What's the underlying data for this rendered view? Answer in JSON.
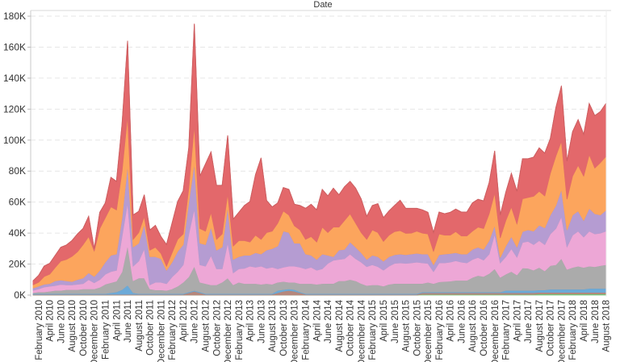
{
  "chart_data": {
    "type": "area",
    "stacked": true,
    "title": "Date",
    "xlabel": "",
    "ylabel": "",
    "ylim": [
      0,
      185
    ],
    "y_ticks": [
      0,
      20,
      40,
      60,
      80,
      100,
      120,
      140,
      160,
      180
    ],
    "y_tick_labels": [
      "0K",
      "20K",
      "40K",
      "60K",
      "80K",
      "100K",
      "120K",
      "140K",
      "160K",
      "180K"
    ],
    "grid": "horizontal dashed",
    "legend": "none",
    "x": [
      "2010-01",
      "2010-02",
      "2010-03",
      "2010-04",
      "2010-05",
      "2010-06",
      "2010-07",
      "2010-08",
      "2010-09",
      "2010-10",
      "2010-11",
      "2010-12",
      "2011-01",
      "2011-02",
      "2011-03",
      "2011-04",
      "2011-05",
      "2011-06",
      "2011-07",
      "2011-08",
      "2011-09",
      "2011-10",
      "2011-11",
      "2011-12",
      "2012-01",
      "2012-02",
      "2012-03",
      "2012-04",
      "2012-05",
      "2012-06",
      "2012-07",
      "2012-08",
      "2012-09",
      "2012-10",
      "2012-11",
      "2012-12",
      "2013-01",
      "2013-02",
      "2013-03",
      "2013-04",
      "2013-05",
      "2013-06",
      "2013-07",
      "2013-08",
      "2013-09",
      "2013-10",
      "2013-11",
      "2013-12",
      "2014-01",
      "2014-02",
      "2014-03",
      "2014-04",
      "2014-05",
      "2014-06",
      "2014-07",
      "2014-08",
      "2014-09",
      "2014-10",
      "2014-11",
      "2014-12",
      "2015-01",
      "2015-02",
      "2015-03",
      "2015-04",
      "2015-05",
      "2015-06",
      "2015-07",
      "2015-08",
      "2015-09",
      "2015-10",
      "2015-11",
      "2015-12",
      "2016-01",
      "2016-02",
      "2016-03",
      "2016-04",
      "2016-05",
      "2016-06",
      "2016-07",
      "2016-08",
      "2016-09",
      "2016-10",
      "2016-11",
      "2016-12",
      "2017-01",
      "2017-02",
      "2017-03",
      "2017-04",
      "2017-05",
      "2017-06",
      "2017-07",
      "2017-08",
      "2017-09",
      "2017-10",
      "2017-11",
      "2017-12",
      "2018-01",
      "2018-02",
      "2018-03",
      "2018-04",
      "2018-05",
      "2018-06",
      "2018-07",
      "2018-08"
    ],
    "x_tick_labels": [
      "February 2010",
      "April 2010",
      "June 2010",
      "August 2010",
      "October 2010",
      "December 2010",
      "February 2011",
      "April 2011",
      "June 2011",
      "August 2011",
      "October 2011",
      "December 2011",
      "February 2012",
      "April 2012",
      "June 2012",
      "August 2012",
      "October 2012",
      "December 2012",
      "February 2013",
      "April 2013",
      "June 2013",
      "August 2013",
      "October 2013",
      "December 2013",
      "February 2014",
      "April 2014",
      "June 2014",
      "August 2014",
      "October 2014",
      "December 2014",
      "February 2015",
      "April 2015",
      "June 2015",
      "August 2015",
      "October 2015",
      "December 2015",
      "February 2016",
      "April 2016",
      "June 2016",
      "August 2016",
      "October 2016",
      "December 2016",
      "February 2017",
      "April 2017",
      "June 2017",
      "August 2017",
      "October 2017",
      "December 2017",
      "February 2018",
      "April 2018",
      "June 2018",
      "August 2018"
    ],
    "series": [
      {
        "color": "#79c278",
        "values": [
          0,
          0,
          0,
          0,
          0,
          0,
          0,
          0,
          0,
          0,
          0,
          0,
          0,
          0,
          0,
          0,
          0,
          0,
          0,
          0,
          0,
          0,
          0,
          0,
          0,
          0,
          0,
          0,
          0,
          0,
          0,
          0,
          0,
          0,
          0,
          0,
          0,
          0,
          0,
          0,
          0,
          0,
          0,
          0,
          0,
          0,
          0,
          0,
          0,
          0,
          0,
          0,
          0,
          0,
          0,
          0,
          0,
          0,
          0,
          0,
          0,
          0,
          0,
          0,
          0,
          0,
          0,
          0,
          0,
          0,
          0.5,
          0.5,
          0.5,
          0.5,
          0.5,
          0.5,
          0.5,
          0.5,
          0.5,
          0.5,
          0.5,
          0.5,
          0.5,
          0.5,
          0.5,
          0.5,
          0.5,
          0.5,
          0.5,
          0.5,
          0.5,
          0.8,
          0.8,
          0.8,
          0.8,
          0.8,
          0.8,
          0.8,
          0.8,
          0.8,
          0.8,
          0.8,
          0.8,
          0.8
        ]
      },
      {
        "color": "#b5877c",
        "values": [
          0.5,
          0.5,
          0.5,
          0.5,
          0.5,
          0.5,
          0.5,
          0.5,
          0.5,
          0.5,
          0.5,
          0.5,
          0.5,
          0.5,
          0.5,
          0.5,
          0.5,
          0.5,
          0.5,
          0.5,
          0.5,
          0.5,
          0.5,
          0.5,
          0.5,
          0.5,
          0.5,
          0.5,
          1.5,
          2.5,
          1.5,
          0.5,
          0.5,
          0.5,
          0.5,
          0.5,
          0.5,
          0.5,
          0.5,
          0.5,
          0.5,
          0.5,
          0.5,
          0.5,
          1.5,
          2.5,
          3,
          2.5,
          1.5,
          0.5,
          0.5,
          0.5,
          0.5,
          0.5,
          0.5,
          0.5,
          0.5,
          0.5,
          0.5,
          0.5,
          0.5,
          0.5,
          0.5,
          0.5,
          0.5,
          0.5,
          0.5,
          0.5,
          0.5,
          0.5,
          1,
          1,
          1,
          1,
          1,
          1,
          1,
          1,
          1,
          1,
          1,
          1,
          1,
          1,
          1,
          1,
          1,
          1,
          1,
          1,
          1,
          1,
          1,
          1,
          1,
          1,
          1,
          1,
          1,
          1,
          1,
          1,
          1,
          1
        ]
      },
      {
        "color": "#6caad8",
        "values": [
          0.5,
          0.5,
          0.5,
          0.5,
          0.5,
          0.5,
          0.5,
          0.5,
          0.5,
          0.5,
          0.5,
          0.5,
          0.5,
          0.5,
          1,
          1.5,
          3,
          6,
          1,
          0.5,
          0.5,
          0.5,
          0.5,
          0.5,
          0.5,
          0.5,
          0.5,
          0.5,
          0.5,
          0.5,
          0.5,
          0.5,
          0.5,
          0.5,
          0.5,
          0.5,
          0.5,
          0.5,
          0.5,
          0.5,
          0.5,
          0.5,
          0.5,
          0.5,
          1.5,
          1,
          1,
          1,
          0.5,
          0.5,
          0.5,
          0.5,
          0.5,
          0.5,
          0.5,
          0.5,
          0.5,
          0.5,
          0.5,
          0.5,
          0.5,
          0.5,
          0.5,
          0.5,
          0.5,
          0.5,
          0.5,
          0.5,
          0.5,
          0.5,
          0.5,
          0.5,
          0.5,
          0.5,
          0.5,
          0.5,
          0.5,
          0.5,
          0.5,
          0.5,
          0.5,
          0.5,
          0.5,
          0.5,
          0.5,
          1.5,
          1.5,
          1.5,
          1.5,
          1.5,
          1.5,
          1.5,
          1.5,
          2,
          2,
          2,
          2,
          2,
          2,
          2,
          2.5,
          2.5,
          2.5,
          2.5
        ]
      },
      {
        "color": "#ababab",
        "values": [
          0.5,
          1,
          1,
          1.5,
          2,
          2,
          2.5,
          2.5,
          2.5,
          3,
          3,
          3,
          4,
          6,
          6.5,
          7,
          11.5,
          25.5,
          7.7,
          10,
          10,
          3,
          2.3,
          2.3,
          2,
          3,
          4.7,
          7.3,
          9.8,
          15.7,
          6.3,
          6.4,
          5.6,
          5.6,
          7.3,
          10,
          5.6,
          7.3,
          6.4,
          6.4,
          6.4,
          6,
          6.4,
          6,
          5.3,
          5.3,
          4.3,
          4.8,
          5.4,
          6.4,
          6.4,
          6,
          6.4,
          6.5,
          6.5,
          8.2,
          8.2,
          9,
          8.2,
          6.5,
          5.2,
          5.6,
          5.6,
          4.8,
          6,
          6.5,
          6.5,
          6.5,
          6.5,
          6.5,
          5.5,
          6.3,
          5.4,
          6.5,
          6.8,
          7,
          7.5,
          7.5,
          7.5,
          9.4,
          10.6,
          10,
          11.9,
          15,
          9.4,
          10.5,
          12.2,
          10,
          14.5,
          14.3,
          13.1,
          14.5,
          12.3,
          15.2,
          15.8,
          19.8,
          12.8,
          14,
          14.9,
          14,
          14.4,
          14,
          14.7,
          15.3
        ]
      },
      {
        "color": "#eda7d6",
        "values": [
          1.6,
          2,
          3.2,
          3.2,
          3.2,
          3.9,
          3.1,
          3.1,
          3.5,
          3.4,
          6,
          4,
          5,
          6.5,
          7.2,
          7,
          23,
          28,
          9.5,
          11,
          19,
          2.6,
          5,
          5,
          4.4,
          7.8,
          9.5,
          11.3,
          27.7,
          37.3,
          11.3,
          11.3,
          19,
          10.4,
          8.7,
          23,
          7.8,
          8.7,
          9.9,
          11.3,
          10.6,
          11.7,
          9.9,
          11,
          8.7,
          9.2,
          10.4,
          10.4,
          10.6,
          9.6,
          10.6,
          9.1,
          9.6,
          13,
          15,
          13.8,
          14.3,
          16.5,
          14.3,
          13.8,
          12.2,
          13,
          11.8,
          10.3,
          11.7,
          13,
          13.3,
          13,
          13.3,
          13.8,
          13.3,
          12.2,
          7.8,
          12.3,
          12,
          12.3,
          12.7,
          11.8,
          11.3,
          11.6,
          11.7,
          10.6,
          12.6,
          22.5,
          9.4,
          11.3,
          14.8,
          11.5,
          16.5,
          17.4,
          16.5,
          17.4,
          17,
          20.5,
          23.4,
          27.2,
          14.6,
          20.9,
          22.6,
          19.7,
          22.6,
          21.2,
          21,
          21.7
        ]
      },
      {
        "color": "#b59cd2",
        "values": [
          1.4,
          1.7,
          1.8,
          1.7,
          3,
          2.8,
          2.6,
          2.1,
          3,
          3.6,
          4.4,
          4,
          6,
          7.8,
          10.5,
          10.5,
          12,
          24,
          12.3,
          11.5,
          15.6,
          18.2,
          16.5,
          15.2,
          8.6,
          9.5,
          13,
          13,
          20.5,
          29,
          13.9,
          13.9,
          18.3,
          12,
          14,
          22.9,
          8.6,
          7.8,
          8.4,
          7,
          9.4,
          7.8,
          11.8,
          12,
          14.7,
          23.3,
          21.7,
          14.8,
          15.5,
          9.5,
          7.7,
          6.9,
          9.5,
          5.2,
          2.3,
          6.1,
          6,
          7.8,
          7.4,
          6.1,
          4.6,
          6.1,
          6.4,
          5.8,
          6.1,
          5.5,
          5.7,
          5.5,
          5.7,
          5.7,
          5.7,
          6,
          4.4,
          5.2,
          5.7,
          5.5,
          5.2,
          5.2,
          5.7,
          6.5,
          6.6,
          6.9,
          8.7,
          5.5,
          3.5,
          6.9,
          7.8,
          6.5,
          7,
          7.4,
          8.7,
          9.9,
          10.8,
          12.2,
          14.8,
          17.4,
          10.9,
          13,
          13,
          10.7,
          14.7,
          13,
          11.7,
          13.5
        ]
      },
      {
        "color": "#fca55d",
        "values": [
          2.1,
          2.6,
          5,
          6.1,
          8.7,
          12.3,
          13.8,
          16.3,
          18,
          21.6,
          23.4,
          16.5,
          27,
          28.7,
          31.3,
          28.5,
          30,
          32,
          5,
          6.9,
          5.2,
          4.2,
          6.1,
          3.5,
          2.7,
          6.1,
          7.8,
          6.9,
          9,
          25,
          9.5,
          8.7,
          9.5,
          7,
          8.5,
          8.7,
          8.7,
          10.4,
          9.5,
          8.6,
          11.3,
          9.5,
          11.3,
          11.3,
          14.8,
          13,
          11.3,
          11.2,
          8.6,
          9.5,
          12.1,
          11.3,
          17.4,
          14.7,
          19.1,
          14.8,
          18.7,
          18.2,
          15.6,
          13,
          13,
          16.4,
          15.6,
          12.8,
          13.9,
          15,
          15.1,
          13.9,
          13.5,
          14.3,
          13.5,
          13,
          8.7,
          13.5,
          12.2,
          11.9,
          13.6,
          11.7,
          11.7,
          11.8,
          13,
          13.5,
          17.3,
          21,
          12.7,
          16.5,
          19.1,
          15,
          21.2,
          20.9,
          22.5,
          21.9,
          20.6,
          26.9,
          32,
          31.2,
          19.9,
          25.1,
          29.5,
          28.6,
          34.7,
          29.5,
          33.8,
          34.7
        ]
      },
      {
        "color": "#e3686b",
        "values": [
          2.6,
          4.4,
          6.7,
          7,
          7.8,
          8.9,
          9.3,
          10.2,
          11.5,
          10.4,
          13,
          1.5,
          10.4,
          9.5,
          19,
          18.4,
          30,
          48,
          15.7,
          13.6,
          13.9,
          13,
          14.1,
          10.8,
          13.9,
          19.1,
          24.4,
          27.8,
          26,
          65,
          33.8,
          43.3,
          39,
          34.8,
          31.3,
          37.4,
          17.3,
          18.2,
          22.6,
          26.1,
          39,
          52.5,
          20.6,
          15.6,
          13,
          15.1,
          16.5,
          13.9,
          15.7,
          20,
          20.8,
          20.7,
          24.3,
          23.6,
          25.1,
          20.8,
          21.7,
          20.9,
          22.5,
          21.6,
          14.8,
          15.7,
          18.6,
          15.3,
          15.6,
          16.8,
          19.6,
          16.1,
          16,
          14.7,
          15,
          13.9,
          12.1,
          14.1,
          13.8,
          14.7,
          14.5,
          15.4,
          15.4,
          18.2,
          17.9,
          17.8,
          20,
          27,
          14.7,
          18.2,
          21.7,
          21,
          25.8,
          25,
          25.2,
          28,
          27.6,
          22.4,
          31.2,
          35.6,
          24.4,
          28.6,
          29.4,
          26.9,
          32.9,
          33.8,
          32.9,
          34.1
        ]
      }
    ]
  }
}
